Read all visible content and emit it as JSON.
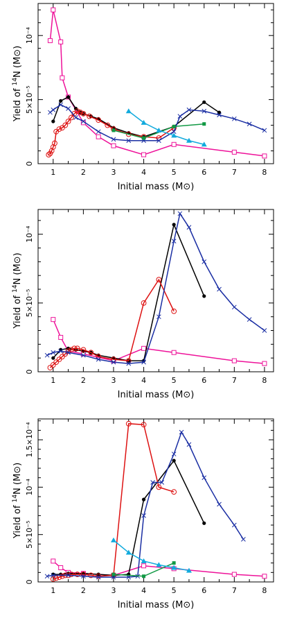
{
  "chart_data": [
    {
      "type": "line",
      "xlabel": "Initial mass (M⊙)",
      "ylabel": "Yield of 14N (M⊙)",
      "xlim": [
        0.5,
        8.3
      ],
      "ylim": [
        0,
        0.000125
      ],
      "xticks": [
        "1",
        "2",
        "3",
        "4",
        "5",
        "6",
        "7",
        "8"
      ],
      "yticks": [
        {
          "value": 0,
          "label": "0"
        },
        {
          "value": 5e-05,
          "label": "5×10⁻⁵"
        },
        {
          "value": 0.0001,
          "label": "10⁻⁴"
        }
      ],
      "series": [
        {
          "color": "#ee1199",
          "marker": "open-square",
          "points": [
            [
              0.9,
              9.6e-05
            ],
            [
              1.0,
              0.00012
            ],
            [
              1.25,
              9.5e-05
            ],
            [
              1.3,
              6.7e-05
            ],
            [
              1.5,
              5.2e-05
            ],
            [
              2.0,
              3.2e-05
            ],
            [
              2.5,
              2.1e-05
            ],
            [
              3.0,
              1.4e-05
            ],
            [
              4.0,
              7e-06
            ],
            [
              5.0,
              1.5e-05
            ],
            [
              7.0,
              9e-06
            ],
            [
              8.0,
              6e-06
            ]
          ]
        },
        {
          "color": "#000000",
          "marker": "filled-circle",
          "points": [
            [
              1.0,
              3.3e-05
            ],
            [
              1.25,
              4.9e-05
            ],
            [
              1.5,
              5.2e-05
            ],
            [
              1.75,
              4.3e-05
            ],
            [
              1.9,
              4e-05
            ],
            [
              2.0,
              3.9e-05
            ],
            [
              2.25,
              3.7e-05
            ],
            [
              2.5,
              3.5e-05
            ],
            [
              3.0,
              2.8e-05
            ],
            [
              3.5,
              2.4e-05
            ],
            [
              4.0,
              2.1e-05
            ],
            [
              5.0,
              2.9e-05
            ],
            [
              6.0,
              4.8e-05
            ],
            [
              6.5,
              4e-05
            ]
          ]
        },
        {
          "color": "#dd1111",
          "marker": "open-circle",
          "points": [
            [
              0.85,
              7e-06
            ],
            [
              0.9,
              8e-06
            ],
            [
              0.95,
              1e-05
            ],
            [
              1.0,
              1.3e-05
            ],
            [
              1.05,
              1.6e-05
            ],
            [
              1.1,
              2.5e-05
            ],
            [
              1.2,
              2.7e-05
            ],
            [
              1.3,
              2.8e-05
            ],
            [
              1.4,
              3e-05
            ],
            [
              1.5,
              3.3e-05
            ],
            [
              1.6,
              3.6e-05
            ],
            [
              1.7,
              3.9e-05
            ],
            [
              1.8,
              4.1e-05
            ],
            [
              1.9,
              4e-05
            ],
            [
              2.0,
              3.9e-05
            ],
            [
              2.2,
              3.7e-05
            ],
            [
              2.5,
              3.4e-05
            ],
            [
              2.8,
              3e-05
            ],
            [
              3.0,
              2.7e-05
            ],
            [
              3.5,
              2.3e-05
            ],
            [
              4.0,
              2.1e-05
            ],
            [
              4.5,
              2e-05
            ],
            [
              5.0,
              2.8e-05
            ]
          ]
        },
        {
          "color": "#1a2ea3",
          "marker": "cross",
          "points": [
            [
              0.9,
              4e-05
            ],
            [
              1.0,
              4.2e-05
            ],
            [
              1.25,
              4.6e-05
            ],
            [
              1.5,
              4.3e-05
            ],
            [
              1.75,
              3.6e-05
            ],
            [
              2.0,
              3.3e-05
            ],
            [
              2.5,
              2.5e-05
            ],
            [
              3.0,
              1.9e-05
            ],
            [
              3.5,
              1.8e-05
            ],
            [
              4.0,
              1.8e-05
            ],
            [
              4.5,
              1.8e-05
            ],
            [
              5.0,
              2.5e-05
            ],
            [
              5.2,
              3.7e-05
            ],
            [
              5.5,
              4.2e-05
            ],
            [
              6.0,
              4.1e-05
            ],
            [
              6.5,
              3.8e-05
            ],
            [
              7.0,
              3.5e-05
            ],
            [
              7.5,
              3.1e-05
            ],
            [
              8.0,
              2.6e-05
            ]
          ]
        },
        {
          "color": "#119944",
          "marker": "filled-square",
          "points": [
            [
              3.0,
              2.6e-05
            ],
            [
              4.0,
              2e-05
            ],
            [
              5.0,
              2.9e-05
            ],
            [
              6.0,
              3.1e-05
            ]
          ]
        },
        {
          "color": "#11aadd",
          "marker": "filled-triangle",
          "points": [
            [
              3.5,
              4.1e-05
            ],
            [
              4.0,
              3.2e-05
            ],
            [
              4.5,
              2.6e-05
            ],
            [
              5.0,
              2.2e-05
            ],
            [
              5.5,
              1.8e-05
            ],
            [
              6.0,
              1.5e-05
            ]
          ]
        }
      ]
    },
    {
      "type": "line",
      "xlabel": "Initial mass (M⊙)",
      "ylabel": "Yield of 14N (M⊙)",
      "xlim": [
        0.5,
        8.3
      ],
      "ylim": [
        0,
        0.000118
      ],
      "xticks": [
        "1",
        "2",
        "3",
        "4",
        "5",
        "6",
        "7",
        "8"
      ],
      "yticks": [
        {
          "value": 0,
          "label": "0"
        },
        {
          "value": 5e-05,
          "label": "5×10⁻⁵"
        },
        {
          "value": 0.0001,
          "label": "10⁻⁴"
        }
      ],
      "series": [
        {
          "color": "#ee1199",
          "marker": "open-square",
          "points": [
            [
              1.0,
              3.8e-05
            ],
            [
              1.25,
              2.5e-05
            ],
            [
              1.5,
              1.5e-05
            ],
            [
              2.0,
              1.3e-05
            ],
            [
              3.0,
              8e-06
            ],
            [
              4.0,
              1.7e-05
            ],
            [
              5.0,
              1.4e-05
            ],
            [
              7.0,
              8e-06
            ],
            [
              8.0,
              6e-06
            ]
          ]
        },
        {
          "color": "#000000",
          "marker": "filled-circle",
          "points": [
            [
              1.0,
              1e-05
            ],
            [
              1.25,
              1.6e-05
            ],
            [
              1.5,
              1.7e-05
            ],
            [
              1.75,
              1.6e-05
            ],
            [
              2.0,
              1.5e-05
            ],
            [
              2.25,
              1.4e-05
            ],
            [
              2.5,
              1.2e-05
            ],
            [
              3.0,
              1e-05
            ],
            [
              3.5,
              8e-06
            ],
            [
              4.0,
              8e-06
            ],
            [
              5.0,
              0.000107
            ],
            [
              6.0,
              5.5e-05
            ]
          ]
        },
        {
          "color": "#dd1111",
          "marker": "open-circle",
          "points": [
            [
              0.9,
              3e-06
            ],
            [
              1.0,
              5e-06
            ],
            [
              1.1,
              7e-06
            ],
            [
              1.2,
              9e-06
            ],
            [
              1.3,
              1.1e-05
            ],
            [
              1.4,
              1.3e-05
            ],
            [
              1.5,
              1.5e-05
            ],
            [
              1.6,
              1.6e-05
            ],
            [
              1.7,
              1.7e-05
            ],
            [
              1.8,
              1.7e-05
            ],
            [
              2.0,
              1.6e-05
            ],
            [
              2.25,
              1.4e-05
            ],
            [
              2.5,
              1.1e-05
            ],
            [
              3.0,
              9e-06
            ],
            [
              3.5,
              8e-06
            ],
            [
              4.0,
              5e-05
            ],
            [
              4.5,
              6.7e-05
            ],
            [
              5.0,
              4.4e-05
            ]
          ]
        },
        {
          "color": "#1a2ea3",
          "marker": "cross",
          "points": [
            [
              0.8,
              1.2e-05
            ],
            [
              1.0,
              1.4e-05
            ],
            [
              1.25,
              1.5e-05
            ],
            [
              1.5,
              1.4e-05
            ],
            [
              2.0,
              1.2e-05
            ],
            [
              2.5,
              9e-06
            ],
            [
              3.0,
              7e-06
            ],
            [
              3.5,
              6e-06
            ],
            [
              4.0,
              7e-06
            ],
            [
              4.5,
              4e-05
            ],
            [
              5.0,
              9.5e-05
            ],
            [
              5.2,
              0.000115
            ],
            [
              5.5,
              0.000105
            ],
            [
              6.0,
              8e-05
            ],
            [
              6.5,
              6e-05
            ],
            [
              7.0,
              4.7e-05
            ],
            [
              7.5,
              3.8e-05
            ],
            [
              8.0,
              3e-05
            ]
          ]
        }
      ]
    },
    {
      "type": "line",
      "xlabel": "Initial mass (M⊙)",
      "ylabel": "Yield of 14N (M⊙)",
      "xlim": [
        0.5,
        8.3
      ],
      "ylim": [
        0,
        0.000172
      ],
      "xticks": [
        "1",
        "2",
        "3",
        "4",
        "5",
        "6",
        "7",
        "8"
      ],
      "yticks": [
        {
          "value": 0,
          "label": "0"
        },
        {
          "value": 5e-05,
          "label": "5×10⁻⁵"
        },
        {
          "value": 0.0001,
          "label": "10⁻⁴"
        },
        {
          "value": 0.00015,
          "label": "1.5×10⁻⁴"
        }
      ],
      "series": [
        {
          "color": "#ee1199",
          "marker": "open-square",
          "points": [
            [
              1.0,
              2.2e-05
            ],
            [
              1.25,
              1.5e-05
            ],
            [
              1.5,
              1e-05
            ],
            [
              2.0,
              9e-06
            ],
            [
              3.0,
              7e-06
            ],
            [
              4.0,
              1.7e-05
            ],
            [
              5.0,
              1.4e-05
            ],
            [
              7.0,
              8e-06
            ],
            [
              8.0,
              6e-06
            ]
          ]
        },
        {
          "color": "#000000",
          "marker": "filled-circle",
          "points": [
            [
              1.0,
              8e-06
            ],
            [
              1.25,
              8e-06
            ],
            [
              1.5,
              9e-06
            ],
            [
              2.0,
              9e-06
            ],
            [
              2.5,
              8e-06
            ],
            [
              3.0,
              7e-06
            ],
            [
              3.5,
              8e-06
            ],
            [
              4.0,
              8.7e-05
            ],
            [
              5.0,
              0.000128
            ],
            [
              6.0,
              6.2e-05
            ]
          ]
        },
        {
          "color": "#dd1111",
          "marker": "open-circle",
          "points": [
            [
              1.0,
              3e-06
            ],
            [
              1.1,
              4e-06
            ],
            [
              1.2,
              5e-06
            ],
            [
              1.3,
              6e-06
            ],
            [
              1.4,
              7e-06
            ],
            [
              1.5,
              7e-06
            ],
            [
              1.6,
              8e-06
            ],
            [
              1.8,
              8e-06
            ],
            [
              2.0,
              8e-06
            ],
            [
              2.25,
              7e-06
            ],
            [
              2.5,
              6e-06
            ],
            [
              3.0,
              7e-06
            ],
            [
              3.5,
              0.000167
            ],
            [
              4.0,
              0.000166
            ],
            [
              4.5,
              0.0001
            ],
            [
              5.0,
              9.5e-05
            ]
          ]
        },
        {
          "color": "#1a2ea3",
          "marker": "cross",
          "points": [
            [
              0.8,
              6e-06
            ],
            [
              1.0,
              7e-06
            ],
            [
              1.5,
              7e-06
            ],
            [
              2.0,
              6e-06
            ],
            [
              2.5,
              5e-06
            ],
            [
              3.0,
              5e-06
            ],
            [
              3.5,
              5e-06
            ],
            [
              3.8,
              6e-06
            ],
            [
              4.0,
              7e-05
            ],
            [
              4.3,
              0.000105
            ],
            [
              4.6,
              0.000105
            ],
            [
              5.0,
              0.000135
            ],
            [
              5.25,
              0.000158
            ],
            [
              5.5,
              0.000145
            ],
            [
              6.0,
              0.00011
            ],
            [
              6.5,
              8.2e-05
            ],
            [
              7.0,
              6e-05
            ],
            [
              7.3,
              4.5e-05
            ]
          ]
        },
        {
          "color": "#119944",
          "marker": "filled-square",
          "points": [
            [
              3.0,
              8e-06
            ],
            [
              4.0,
              6e-06
            ],
            [
              5.0,
              2e-05
            ]
          ]
        },
        {
          "color": "#11aadd",
          "marker": "filled-triangle",
          "points": [
            [
              3.0,
              4.4e-05
            ],
            [
              3.5,
              3.1e-05
            ],
            [
              4.0,
              2.2e-05
            ],
            [
              4.5,
              1.8e-05
            ],
            [
              5.0,
              1.5e-05
            ],
            [
              5.5,
              1.2e-05
            ]
          ]
        }
      ]
    }
  ]
}
